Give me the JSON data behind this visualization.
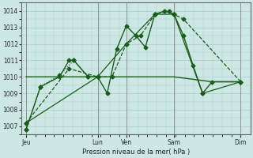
{
  "background_color": "#cde8e4",
  "grid_color": "#a8cec8",
  "line_color": "#1a5c1a",
  "xlabel": "Pression niveau de la mer( hPa )",
  "ylim": [
    1006.5,
    1014.5
  ],
  "yticks": [
    1007,
    1008,
    1009,
    1010,
    1011,
    1012,
    1013,
    1014
  ],
  "xlim": [
    0,
    24
  ],
  "day_labels": [
    "Jeu",
    "Lun",
    "Ven",
    "Sam",
    "Dim"
  ],
  "day_positions": [
    0.5,
    8,
    11,
    16,
    23
  ],
  "vline_positions": [
    0.5,
    8,
    11,
    16,
    23
  ],
  "series1_dotted": {
    "x": [
      0.5,
      2,
      4,
      5.5,
      7,
      8
    ],
    "y": [
      1006.8,
      1009.4,
      1010.1,
      1011.0,
      1010.0,
      1010.0
    ],
    "style": ":",
    "linewidth": 0.9,
    "markersize": 2.5
  },
  "series_main": {
    "x": [
      0.5,
      2,
      4,
      5,
      5.5,
      7,
      8,
      9,
      10,
      11,
      12,
      13,
      14,
      15,
      16,
      17,
      18,
      19,
      20,
      23
    ],
    "y": [
      1006.8,
      1009.4,
      1010.0,
      1011.0,
      1011.0,
      1010.0,
      1010.0,
      1009.0,
      1011.7,
      1013.1,
      1012.5,
      1011.8,
      1013.8,
      1014.0,
      1013.8,
      1012.5,
      1010.7,
      1009.0,
      1009.7,
      1009.7
    ],
    "style": "-",
    "linewidth": 1.0,
    "markersize": 2.5
  },
  "series_dashed": {
    "x": [
      0.5,
      5,
      8,
      9.5,
      11,
      12.5,
      14,
      15.5,
      16,
      17,
      23
    ],
    "y": [
      1007.2,
      1010.5,
      1010.0,
      1010.0,
      1012.0,
      1012.5,
      1013.8,
      1014.0,
      1013.8,
      1013.5,
      1009.7
    ],
    "style": "--",
    "linewidth": 0.9,
    "markersize": 2.5
  },
  "series_sparse": {
    "x": [
      0.5,
      8,
      11,
      14,
      16,
      19,
      23
    ],
    "y": [
      1007.2,
      1010.0,
      1012.0,
      1013.8,
      1013.8,
      1009.0,
      1009.7
    ],
    "style": "-",
    "linewidth": 0.9,
    "markersize": 2.5
  },
  "series_flat": {
    "x": [
      0.5,
      8,
      11,
      16,
      20,
      23
    ],
    "y": [
      1010.0,
      1010.0,
      1010.0,
      1010.0,
      1009.7,
      1009.7
    ],
    "style": "-",
    "linewidth": 1.0,
    "markersize": 0
  }
}
